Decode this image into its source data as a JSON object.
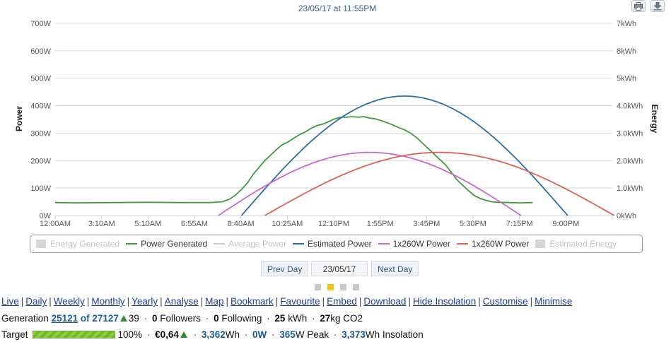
{
  "header": {
    "subtitle": "23/05/17 at 11:55PM"
  },
  "toolbar": {
    "print_icon": "printer-icon",
    "download_icon": "download-icon"
  },
  "chart_data": {
    "type": "line",
    "y_left": {
      "label": "Power",
      "ticks": [
        "0W",
        "100W",
        "200W",
        "300W",
        "400W",
        "500W",
        "600W",
        "700W"
      ],
      "range": [
        0,
        700
      ]
    },
    "y_right": {
      "label": "Energy",
      "ticks": [
        "0kWh",
        "1.0kWh",
        "2.0kWh",
        "3.0kWh",
        "4.0kWh",
        "5kWh",
        "6kWh",
        "7kWh"
      ],
      "range": [
        0,
        7
      ]
    },
    "x": {
      "ticks": [
        "12:00AM",
        "3:10AM",
        "5:10AM",
        "6:55AM",
        "8:40AM",
        "10:25AM",
        "12:10PM",
        "1:55PM",
        "3:45PM",
        "5:30PM",
        "7:15PM",
        "9:00PM"
      ],
      "range_minutes": [
        0,
        1435
      ]
    },
    "grid": true,
    "series": [
      {
        "name": "Power Generated",
        "color": "#3d9a3d",
        "points": [
          [
            0,
            47
          ],
          [
            60,
            46
          ],
          [
            150,
            47
          ],
          [
            240,
            48
          ],
          [
            330,
            47
          ],
          [
            400,
            47
          ],
          [
            430,
            50
          ],
          [
            450,
            60
          ],
          [
            465,
            75
          ],
          [
            480,
            95
          ],
          [
            495,
            118
          ],
          [
            510,
            150
          ],
          [
            525,
            175
          ],
          [
            540,
            200
          ],
          [
            555,
            220
          ],
          [
            570,
            240
          ],
          [
            585,
            258
          ],
          [
            600,
            268
          ],
          [
            615,
            282
          ],
          [
            630,
            295
          ],
          [
            645,
            305
          ],
          [
            660,
            318
          ],
          [
            675,
            328
          ],
          [
            690,
            333
          ],
          [
            705,
            342
          ],
          [
            720,
            352
          ],
          [
            735,
            358
          ],
          [
            750,
            358
          ],
          [
            765,
            360
          ],
          [
            780,
            358
          ],
          [
            795,
            360
          ],
          [
            810,
            355
          ],
          [
            825,
            352
          ],
          [
            840,
            345
          ],
          [
            855,
            338
          ],
          [
            870,
            330
          ],
          [
            885,
            320
          ],
          [
            900,
            312
          ],
          [
            915,
            300
          ],
          [
            930,
            285
          ],
          [
            945,
            265
          ],
          [
            960,
            245
          ],
          [
            975,
            225
          ],
          [
            990,
            205
          ],
          [
            1005,
            185
          ],
          [
            1020,
            158
          ],
          [
            1035,
            130
          ],
          [
            1050,
            110
          ],
          [
            1065,
            90
          ],
          [
            1080,
            72
          ],
          [
            1095,
            62
          ],
          [
            1110,
            55
          ],
          [
            1125,
            50
          ],
          [
            1140,
            48
          ],
          [
            1170,
            47
          ],
          [
            1200,
            46
          ],
          [
            1230,
            47
          ]
        ]
      },
      {
        "name": "Estimated Power",
        "color": "#2b6ea6",
        "peak": 435,
        "peak_time": 900,
        "start": 480,
        "end": 1320
      },
      {
        "name": "1x260W Power",
        "color": "#cc66cc",
        "peak": 230,
        "peak_time": 810,
        "start": 420,
        "end": 1200
      },
      {
        "name": "1x260W Power",
        "color": "#e06058",
        "peak": 230,
        "peak_time": 990,
        "start": 540,
        "end": 1440
      }
    ],
    "legend": {
      "placement": "bottom",
      "items": [
        {
          "name": "Energy Generated",
          "active": false,
          "kind": "box"
        },
        {
          "name": "Power Generated",
          "active": true,
          "kind": "line",
          "color": "#3d9a3d"
        },
        {
          "name": "Average Power",
          "active": false,
          "kind": "line",
          "color": "#cccccc"
        },
        {
          "name": "Estimated Power",
          "active": true,
          "kind": "line",
          "color": "#2b6ea6"
        },
        {
          "name": "1x260W Power",
          "active": true,
          "kind": "line",
          "color": "#cc66cc"
        },
        {
          "name": "1x260W Power",
          "active": true,
          "kind": "line",
          "color": "#e06058"
        },
        {
          "name": "Estimated Energy",
          "active": false,
          "kind": "box"
        }
      ]
    }
  },
  "nav": {
    "prev_label": "Prev Day",
    "date_label": "23/05/17",
    "next_label": "Next Day"
  },
  "links": [
    "Live",
    "Daily",
    "Weekly",
    "Monthly",
    "Yearly",
    "Analyse",
    "Map",
    "Bookmark",
    "Favourite",
    "Embed",
    "Download",
    "Hide Insolation",
    "Customise",
    "Minimise"
  ],
  "stats": {
    "generation_label": "Generation",
    "rank": "25121",
    "rank_of": "of 27127",
    "rank_change": "39",
    "followers_count": "0",
    "followers_label": "Followers",
    "following_count": "0",
    "following_label": "Following",
    "kwh_value": "25",
    "kwh_label": "kWh",
    "co2_value": "27",
    "co2_label": "kg CO2"
  },
  "target": {
    "label": "Target",
    "progress_percent": 100,
    "percent_text": "100%",
    "money": "€0,64",
    "energy_value": "3,362",
    "energy_unit": "Wh",
    "power_value": "0W",
    "peak_value": "365",
    "peak_unit": "W Peak",
    "insolation_value": "3,373",
    "insolation_unit": "Wh Insolation"
  }
}
